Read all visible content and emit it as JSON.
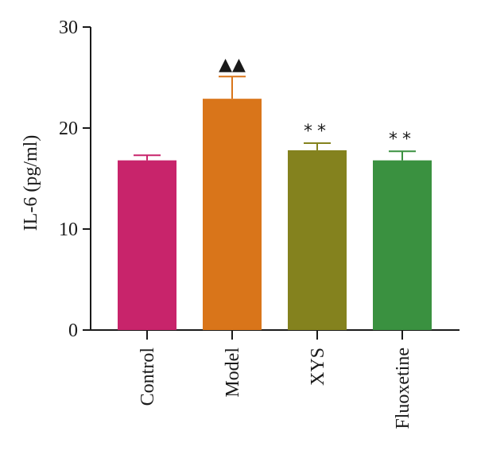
{
  "chart_data": {
    "type": "bar",
    "ylabel": "IL-6 (pg/ml)",
    "ylim": [
      0,
      30
    ],
    "yticks": [
      "0",
      "10",
      "20",
      "30"
    ],
    "categories": [
      "Control",
      "Model",
      "XYS",
      "Fluoxetine"
    ],
    "values": [
      16.8,
      22.9,
      17.8,
      16.8
    ],
    "errors": [
      0.5,
      2.2,
      0.7,
      0.9
    ],
    "colors": [
      "#c8246b",
      "#d9751a",
      "#84821e",
      "#3a9140"
    ],
    "significance": [
      "",
      "▲▲",
      "**",
      "**"
    ],
    "grid": false,
    "legend": "none"
  }
}
